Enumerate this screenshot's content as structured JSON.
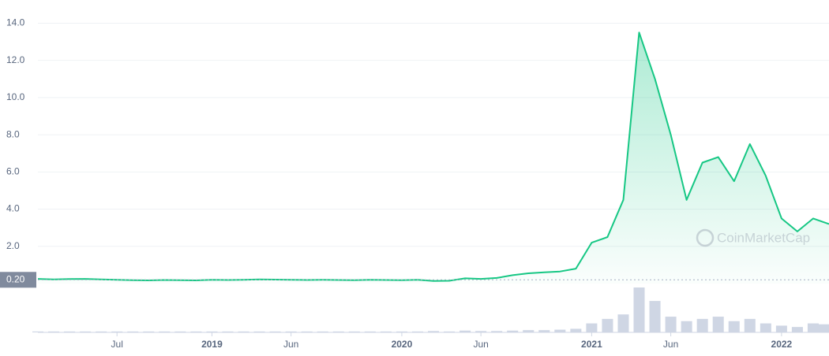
{
  "chart_data": {
    "type": "line",
    "color": "#16c784",
    "x": [
      "2018-02",
      "2018-03",
      "2018-04",
      "2018-05",
      "2018-06",
      "2018-07",
      "2018-08",
      "2018-09",
      "2018-10",
      "2018-11",
      "2018-12",
      "2019-01",
      "2019-02",
      "2019-03",
      "2019-04",
      "2019-05",
      "2019-06",
      "2019-07",
      "2019-08",
      "2019-09",
      "2019-10",
      "2019-11",
      "2019-12",
      "2020-01",
      "2020-02",
      "2020-03",
      "2020-04",
      "2020-05",
      "2020-06",
      "2020-07",
      "2020-08",
      "2020-09",
      "2020-10",
      "2020-11",
      "2020-12",
      "2021-01",
      "2021-02",
      "2021-03",
      "2021-04",
      "2021-05",
      "2021-06",
      "2021-07",
      "2021-08",
      "2021-09",
      "2021-10",
      "2021-11",
      "2021-12",
      "2022-01",
      "2022-02",
      "2022-03",
      "2022-04"
    ],
    "values": [
      0.25,
      0.22,
      0.24,
      0.25,
      0.22,
      0.2,
      0.18,
      0.17,
      0.19,
      0.18,
      0.17,
      0.2,
      0.19,
      0.2,
      0.22,
      0.21,
      0.2,
      0.19,
      0.2,
      0.19,
      0.18,
      0.2,
      0.19,
      0.18,
      0.2,
      0.14,
      0.15,
      0.28,
      0.25,
      0.3,
      0.45,
      0.55,
      0.6,
      0.65,
      0.8,
      2.2,
      2.5,
      4.5,
      13.5,
      11,
      8,
      4.5,
      6.5,
      6.8,
      5.5,
      7.5,
      5.8,
      3.5,
      2.8,
      3.5,
      3.2
    ],
    "volume": {
      "color": "#cfd6e4",
      "axis": "y2",
      "values": [
        2,
        2,
        2,
        2,
        2,
        2,
        2,
        2,
        2,
        2,
        2,
        2,
        2,
        2,
        2,
        2,
        2,
        2,
        2,
        2,
        2,
        2,
        2,
        2,
        2,
        3,
        2,
        4,
        3,
        3,
        4,
        5,
        5,
        6,
        8,
        20,
        30,
        40,
        100,
        70,
        35,
        25,
        30,
        35,
        25,
        30,
        20,
        15,
        12,
        20,
        18
      ]
    },
    "xlim": [
      "2018-02",
      "2022-04"
    ],
    "xticks": [
      {
        "value": "2018-07",
        "label": "Jul"
      },
      {
        "value": "2019-01",
        "label": "2019"
      },
      {
        "value": "2019-06",
        "label": "Jun"
      },
      {
        "value": "2020-01",
        "label": "2020"
      },
      {
        "value": "2020-06",
        "label": "Jun"
      },
      {
        "value": "2021-01",
        "label": "2021"
      },
      {
        "value": "2021-06",
        "label": "Jun"
      },
      {
        "value": "2022-01",
        "label": "2022"
      }
    ],
    "ylim": [
      0,
      14.4
    ],
    "yticks": [
      {
        "value": 2,
        "label": "2.0"
      },
      {
        "value": 4,
        "label": "4.0"
      },
      {
        "value": 6,
        "label": "6.0"
      },
      {
        "value": 8,
        "label": "8.0"
      },
      {
        "value": 10,
        "label": "10.0"
      },
      {
        "value": 12,
        "label": "12.0"
      },
      {
        "value": 14,
        "label": "14.0"
      }
    ],
    "y2lim": [
      0,
      100
    ],
    "grid": true,
    "reference_line": {
      "value": 0.2,
      "label": "0.20"
    },
    "watermark": "CoinMarketCap"
  }
}
